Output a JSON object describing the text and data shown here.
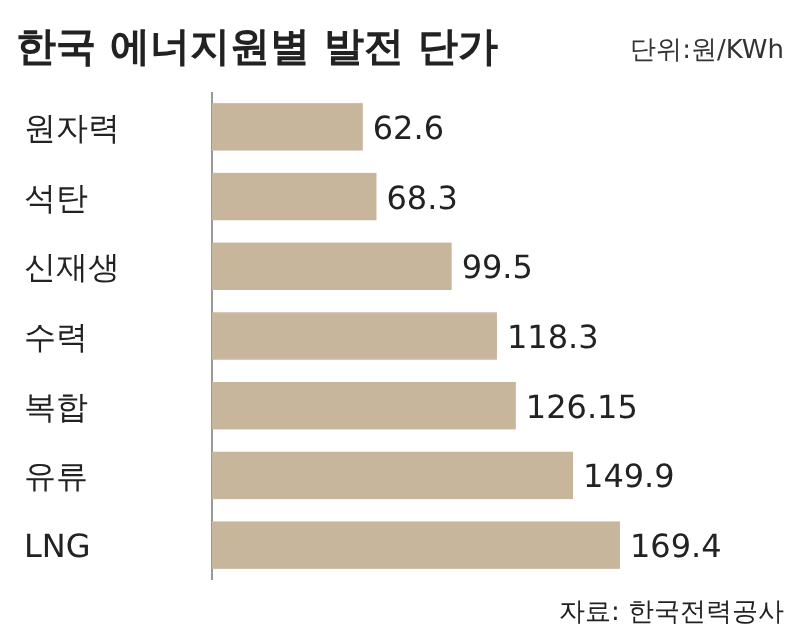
{
  "chart_data": {
    "type": "bar",
    "orientation": "horizontal",
    "title": "한국 에너지원별 발전 단가",
    "subtitle": "단위:원/KWh",
    "categories": [
      "원자력",
      "석탄",
      "신재생",
      "수력",
      "복합",
      "유류",
      "LNG"
    ],
    "values": [
      62.6,
      68.3,
      99.5,
      118.3,
      126.15,
      149.9,
      169.4
    ],
    "color": "#c7b59c",
    "data_labels": true,
    "annotations": [
      "자료: 한국전력공사"
    ]
  }
}
